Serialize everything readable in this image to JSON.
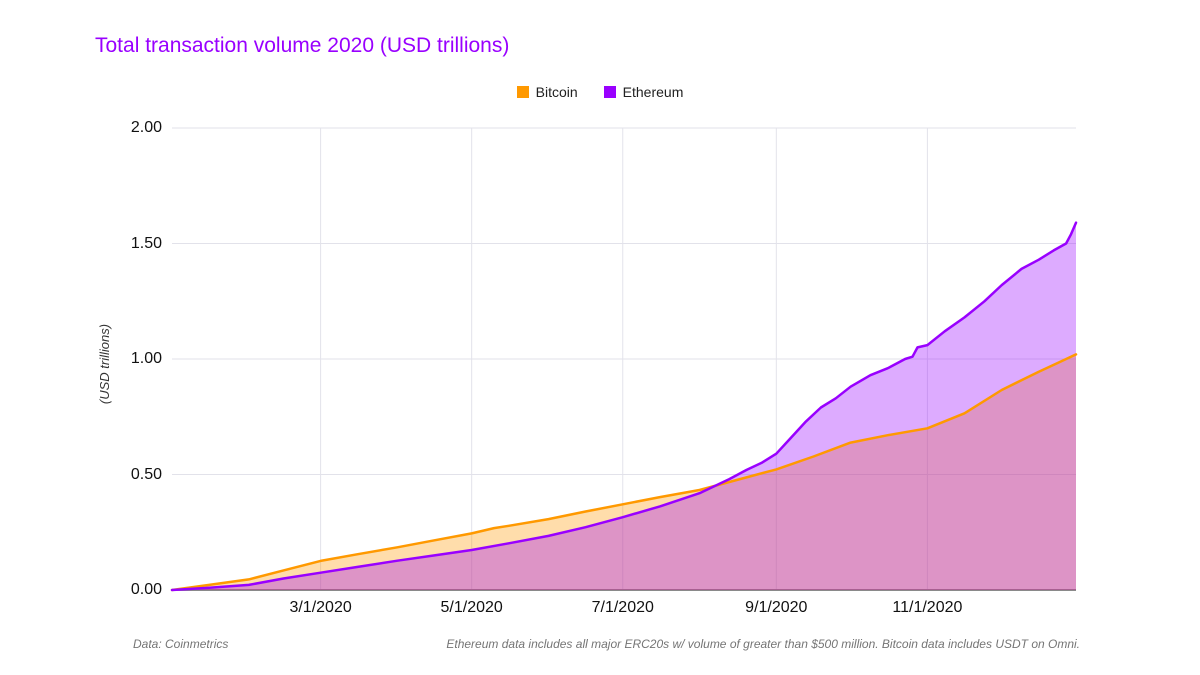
{
  "title": "Total transaction volume 2020 (USD trillions)",
  "colors": {
    "title": "#9900ff",
    "bitcoin": "#ff9900",
    "ethereum": "#9900ff",
    "gridline": "#e2e2ea",
    "baseline": "#8a8a8a"
  },
  "legend": [
    {
      "label": "Bitcoin",
      "color": "#ff9900"
    },
    {
      "label": "Ethereum",
      "color": "#9900ff"
    }
  ],
  "y_axis": {
    "title": "(USD trillions)"
  },
  "footnotes": {
    "left": "Data: Coinmetrics",
    "right": "Ethereum data includes all major ERC20s w/ volume of greater than $500 million. Bitcoin data includes USDT on Omni."
  },
  "chart_data": {
    "type": "area",
    "title": "Total transaction volume 2020 (USD trillions)",
    "xlabel": "",
    "ylabel": "(USD trillions)",
    "x_unit": "day of year 2020 (cumulative volume)",
    "xlim": [
      0,
      365
    ],
    "ylim": [
      0,
      2.0
    ],
    "grid": true,
    "legend_position": "top-center",
    "y_ticks": [
      {
        "v": 2.0,
        "label": "2.00"
      },
      {
        "v": 1.5,
        "label": "1.50"
      },
      {
        "v": 1.0,
        "label": "1.00"
      },
      {
        "v": 0.5,
        "label": "0.50"
      },
      {
        "v": 0.0,
        "label": "0.00"
      }
    ],
    "x_ticks": [
      {
        "day": 60,
        "label": "3/1/2020"
      },
      {
        "day": 121,
        "label": "5/1/2020"
      },
      {
        "day": 182,
        "label": "7/1/2020"
      },
      {
        "day": 244,
        "label": "9/1/2020"
      },
      {
        "day": 305,
        "label": "11/1/2020"
      }
    ],
    "series": [
      {
        "name": "Bitcoin",
        "color": "#ff9900",
        "fill_opacity": 0.33,
        "points": [
          [
            0,
            0
          ],
          [
            15,
            0.022
          ],
          [
            31,
            0.046
          ],
          [
            45,
            0.085
          ],
          [
            60,
            0.126
          ],
          [
            75,
            0.155
          ],
          [
            91,
            0.185
          ],
          [
            106,
            0.215
          ],
          [
            121,
            0.245
          ],
          [
            130,
            0.268
          ],
          [
            136,
            0.278
          ],
          [
            152,
            0.307
          ],
          [
            167,
            0.34
          ],
          [
            182,
            0.371
          ],
          [
            197,
            0.402
          ],
          [
            213,
            0.433
          ],
          [
            228,
            0.476
          ],
          [
            244,
            0.522
          ],
          [
            259,
            0.578
          ],
          [
            274,
            0.638
          ],
          [
            289,
            0.67
          ],
          [
            305,
            0.7
          ],
          [
            320,
            0.765
          ],
          [
            335,
            0.866
          ],
          [
            350,
            0.945
          ],
          [
            358,
            0.985
          ],
          [
            365,
            1.02
          ]
        ]
      },
      {
        "name": "Ethereum",
        "color": "#9900ff",
        "fill_opacity": 0.33,
        "points": [
          [
            0,
            0
          ],
          [
            15,
            0.01
          ],
          [
            31,
            0.022
          ],
          [
            45,
            0.05
          ],
          [
            60,
            0.075
          ],
          [
            75,
            0.1
          ],
          [
            91,
            0.127
          ],
          [
            106,
            0.15
          ],
          [
            121,
            0.173
          ],
          [
            136,
            0.202
          ],
          [
            152,
            0.234
          ],
          [
            167,
            0.272
          ],
          [
            182,
            0.315
          ],
          [
            197,
            0.362
          ],
          [
            213,
            0.419
          ],
          [
            225,
            0.48
          ],
          [
            232,
            0.52
          ],
          [
            238,
            0.55
          ],
          [
            244,
            0.59
          ],
          [
            250,
            0.66
          ],
          [
            256,
            0.73
          ],
          [
            262,
            0.79
          ],
          [
            268,
            0.83
          ],
          [
            274,
            0.88
          ],
          [
            282,
            0.93
          ],
          [
            289,
            0.96
          ],
          [
            296,
            1.0
          ],
          [
            299,
            1.01
          ],
          [
            301,
            1.05
          ],
          [
            305,
            1.06
          ],
          [
            312,
            1.12
          ],
          [
            320,
            1.18
          ],
          [
            328,
            1.25
          ],
          [
            335,
            1.32
          ],
          [
            343,
            1.39
          ],
          [
            350,
            1.43
          ],
          [
            356,
            1.47
          ],
          [
            361,
            1.5
          ],
          [
            363,
            1.54
          ],
          [
            365,
            1.59
          ]
        ]
      }
    ]
  }
}
